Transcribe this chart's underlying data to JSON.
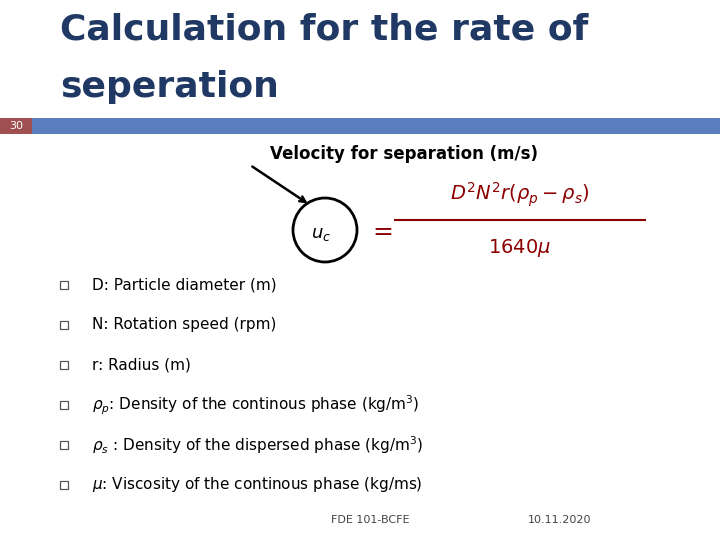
{
  "title_line1": "Calculation for the rate of",
  "title_line2": "seperation",
  "title_color": "#1F3864",
  "slide_number": "30",
  "slide_number_bg": "#A05050",
  "header_bar_color": "#5B7FBE",
  "subtitle": "Velocity for separation (m/s)",
  "footer_left": "FDE 101-BCFE",
  "footer_right": "10.11.2020",
  "bg_color": "#FFFFFF",
  "formula_color": "#8B0000",
  "bullet_color": "#333333",
  "bullet_sq_color": "#888888"
}
